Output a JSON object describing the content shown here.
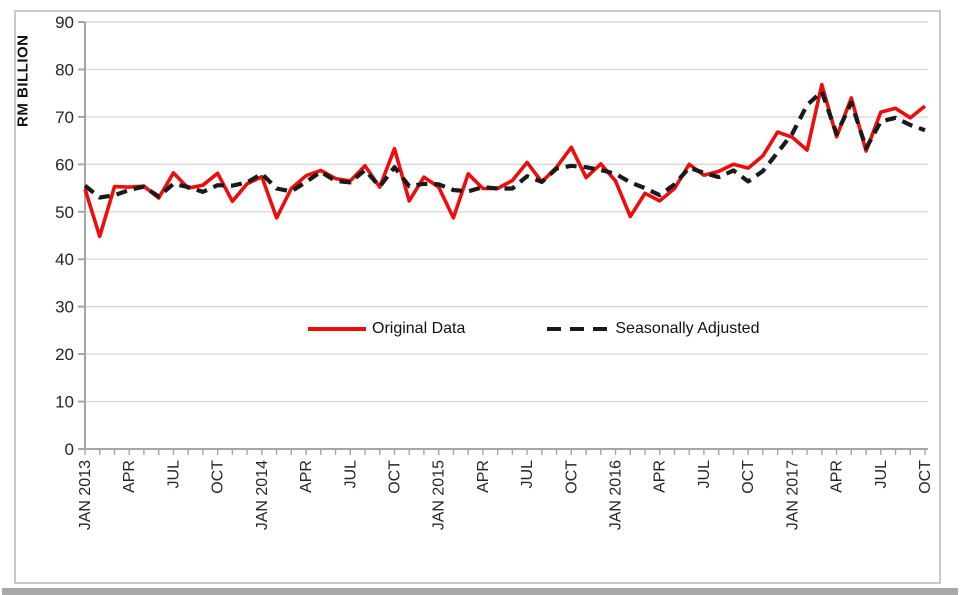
{
  "chart_data": {
    "type": "line",
    "title": "",
    "ylabel": "RM BILLION",
    "xlabel": "",
    "ylim": [
      0,
      90
    ],
    "ytick_step": 10,
    "ytick_labels": [
      "0",
      "10",
      "20",
      "30",
      "40",
      "50",
      "60",
      "70",
      "80",
      "90"
    ],
    "grid": "horizontal-only",
    "n_points": 58,
    "x_range_text": "monthly, JAN 2013 to OCT 2017",
    "xtick_every_months": 3,
    "xtick_labels": [
      "JAN 2013",
      "APR",
      "JUL",
      "OCT",
      "JAN 2014",
      "APR",
      "JUL",
      "OCT",
      "JAN 2015",
      "APR",
      "JUL",
      "OCT",
      "JAN 2016",
      "APR",
      "JUL",
      "OCT",
      "JAN 2017",
      "APR",
      "JUL",
      "OCT"
    ],
    "legend_position": "inside-center",
    "series": [
      {
        "name": "Original Data",
        "color": "#ee0d0d",
        "style": "solid",
        "values": [
          54.8,
          44.8,
          55.3,
          55.2,
          55.4,
          52.9,
          58.2,
          55.0,
          55.6,
          58.1,
          52.2,
          55.9,
          57.4,
          48.7,
          54.9,
          57.6,
          58.7,
          57.0,
          56.5,
          59.7,
          55.2,
          63.3,
          52.3,
          57.3,
          55.2,
          48.7,
          58.0,
          54.9,
          54.9,
          56.6,
          60.4,
          56.3,
          59.4,
          63.6,
          57.2,
          60.1,
          56.5,
          49.0,
          53.9,
          52.3,
          54.9,
          60.0,
          57.7,
          58.5,
          60.0,
          59.2,
          61.8,
          66.8,
          65.7,
          63.0,
          76.8,
          65.8,
          74.0,
          62.8,
          71.0,
          71.8,
          69.8,
          72.3
        ]
      },
      {
        "name": "Seasonally Adjusted",
        "color": "#1a1a1a",
        "style": "dashed",
        "values": [
          55.5,
          53.0,
          53.5,
          54.6,
          55.3,
          53.2,
          55.9,
          55.2,
          54.2,
          55.6,
          55.5,
          56.2,
          58.0,
          54.9,
          54.3,
          56.3,
          58.4,
          56.5,
          56.2,
          58.8,
          55.3,
          59.4,
          55.4,
          55.9,
          55.8,
          54.6,
          54.3,
          55.2,
          54.9,
          54.9,
          57.5,
          56.3,
          59.1,
          59.7,
          59.4,
          58.8,
          58.0,
          56.2,
          55.0,
          53.5,
          55.8,
          59.3,
          58.2,
          57.3,
          58.7,
          56.4,
          58.6,
          62.5,
          66.5,
          72.5,
          75.3,
          66.4,
          73.0,
          63.4,
          69.0,
          69.8,
          68.3,
          67.2
        ]
      }
    ],
    "colors": {
      "gridline": "#d9d9d9",
      "axis": "#a6a6a6",
      "tick_label": "#262626",
      "figure_border": "#c9c9c9"
    }
  }
}
